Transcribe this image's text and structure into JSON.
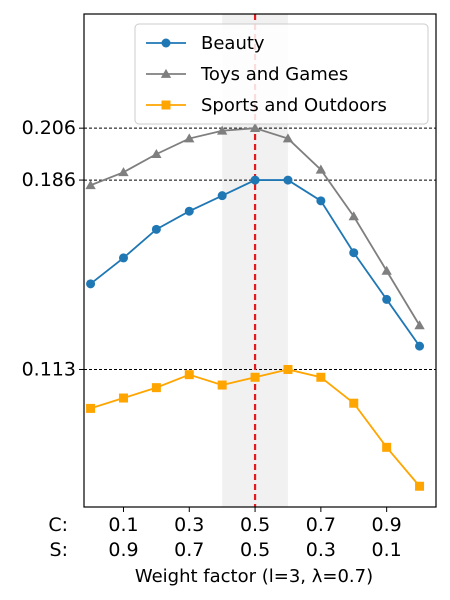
{
  "chart_data": {
    "type": "line",
    "title": "",
    "xlabel": "Weight factor (l=3, λ=0.7)",
    "ylabel": "",
    "x": [
      0.0,
      0.1,
      0.2,
      0.3,
      0.4,
      0.5,
      0.6,
      0.7,
      0.8,
      0.9,
      1.0
    ],
    "xlim": [
      -0.02,
      1.05
    ],
    "ylim": [
      0.06,
      0.25
    ],
    "x_tick_rows": [
      {
        "row_label": "C:",
        "ticks": [
          {
            "x": 0.1,
            "label": "0.1"
          },
          {
            "x": 0.3,
            "label": "0.3"
          },
          {
            "x": 0.5,
            "label": "0.5"
          },
          {
            "x": 0.7,
            "label": "0.7"
          },
          {
            "x": 0.9,
            "label": "0.9"
          }
        ]
      },
      {
        "row_label": "S:",
        "ticks": [
          {
            "x": 0.1,
            "label": "0.9"
          },
          {
            "x": 0.3,
            "label": "0.7"
          },
          {
            "x": 0.5,
            "label": "0.5"
          },
          {
            "x": 0.7,
            "label": "0.3"
          },
          {
            "x": 0.9,
            "label": "0.1"
          }
        ]
      }
    ],
    "y_ticks": [
      {
        "value": 0.206,
        "label": "0.206"
      },
      {
        "value": 0.186,
        "label": "0.186"
      },
      {
        "value": 0.113,
        "label": "0.113"
      }
    ],
    "reference_lines_y": [
      0.206,
      0.186,
      0.113
    ],
    "highlight_band_x": [
      0.4,
      0.6
    ],
    "vertical_line_x": 0.5,
    "series": [
      {
        "name": "Beauty",
        "color": "#1f77b4",
        "marker": "circle",
        "values": [
          0.146,
          0.156,
          0.167,
          0.174,
          0.18,
          0.186,
          0.186,
          0.178,
          0.158,
          0.14,
          0.122
        ]
      },
      {
        "name": "Toys and Games",
        "color": "#7f7f7f",
        "marker": "triangle",
        "values": [
          0.184,
          0.189,
          0.196,
          0.202,
          0.205,
          0.206,
          0.202,
          0.19,
          0.172,
          0.151,
          0.13
        ]
      },
      {
        "name": "Sports and Outdoors",
        "color": "#ffa500",
        "marker": "square",
        "values": [
          0.098,
          0.102,
          0.106,
          0.111,
          0.107,
          0.11,
          0.113,
          0.11,
          0.1,
          0.083,
          0.068
        ]
      }
    ],
    "legend": {
      "position": "top-right"
    },
    "grid": false
  }
}
